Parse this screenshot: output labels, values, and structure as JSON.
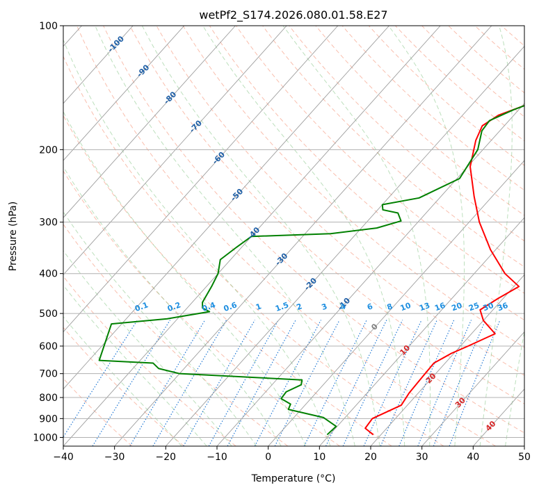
{
  "chart_data": {
    "type": "line",
    "title": "wetPf2_S174.2026.080.01.58.E27",
    "xlabel": "Temperature (°C)",
    "ylabel": "Pressure (hPa)",
    "xlim": [
      -40,
      50
    ],
    "ylim": [
      1050,
      100
    ],
    "y_scale": "log",
    "x_ticks": [
      -40,
      -30,
      -20,
      -10,
      0,
      10,
      20,
      30,
      40,
      50
    ],
    "y_ticks": [
      100,
      200,
      300,
      400,
      500,
      600,
      700,
      800,
      900,
      1000
    ],
    "grid": true,
    "isotherm_labels": [
      -100,
      -90,
      -80,
      -70,
      -60,
      -50,
      -40,
      -30,
      -20,
      -10,
      0,
      10,
      20,
      30,
      40
    ],
    "mixing_ratio_labels": [
      "0.1",
      "0.2",
      "0.4",
      "0.6",
      "1",
      "1.5",
      "2",
      "3",
      "4",
      "6",
      "8",
      "10",
      "13",
      "16",
      "20",
      "25",
      "30",
      "36"
    ],
    "series": [
      {
        "color": "#ff0000",
        "values": [
          {
            "x": 18.5,
            "y": 985
          },
          {
            "x": 15.8,
            "y": 950
          },
          {
            "x": 15.5,
            "y": 900
          },
          {
            "x": 18.8,
            "y": 835
          },
          {
            "x": 18.2,
            "y": 780
          },
          {
            "x": 18.0,
            "y": 720
          },
          {
            "x": 17.8,
            "y": 660
          },
          {
            "x": 19.5,
            "y": 625
          },
          {
            "x": 21.5,
            "y": 600
          },
          {
            "x": 24.6,
            "y": 560
          },
          {
            "x": 20.0,
            "y": 520
          },
          {
            "x": 17.5,
            "y": 490
          },
          {
            "x": 19.0,
            "y": 460
          },
          {
            "x": 21.0,
            "y": 430
          },
          {
            "x": 16.0,
            "y": 400
          },
          {
            "x": 9.0,
            "y": 350
          },
          {
            "x": 2.0,
            "y": 300
          },
          {
            "x": -3.5,
            "y": 260
          },
          {
            "x": -9.5,
            "y": 220
          },
          {
            "x": -13.0,
            "y": 190
          },
          {
            "x": -14.3,
            "y": 175
          },
          {
            "x": -13.0,
            "y": 165
          },
          {
            "x": -7.0,
            "y": 150
          },
          {
            "x": -2.0,
            "y": 135
          },
          {
            "x": 1.0,
            "y": 125
          },
          {
            "x": 2.5,
            "y": 115
          },
          {
            "x": 4.5,
            "y": 107
          },
          {
            "x": 6.0,
            "y": 100
          }
        ]
      },
      {
        "color": "#008000",
        "values": [
          {
            "x": 9.5,
            "y": 985
          },
          {
            "x": 9.8,
            "y": 940
          },
          {
            "x": 5.8,
            "y": 895
          },
          {
            "x": -2.5,
            "y": 855
          },
          {
            "x": -3.0,
            "y": 830
          },
          {
            "x": -5.8,
            "y": 805
          },
          {
            "x": -6.0,
            "y": 775
          },
          {
            "x": -4.3,
            "y": 745
          },
          {
            "x": -5.0,
            "y": 725
          },
          {
            "x": -30.0,
            "y": 700
          },
          {
            "x": -35.0,
            "y": 680
          },
          {
            "x": -37.0,
            "y": 660
          },
          {
            "x": -48.0,
            "y": 650
          },
          {
            "x": -52.0,
            "y": 530
          },
          {
            "x": -42.0,
            "y": 515
          },
          {
            "x": -35.0,
            "y": 495
          },
          {
            "x": -37.0,
            "y": 485
          },
          {
            "x": -38.0,
            "y": 470
          },
          {
            "x": -39.0,
            "y": 430
          },
          {
            "x": -40.0,
            "y": 400
          },
          {
            "x": -42.0,
            "y": 370
          },
          {
            "x": -41.0,
            "y": 345
          },
          {
            "x": -40.0,
            "y": 325
          },
          {
            "x": -25.0,
            "y": 320
          },
          {
            "x": -17.0,
            "y": 310
          },
          {
            "x": -13.5,
            "y": 298
          },
          {
            "x": -15.5,
            "y": 285
          },
          {
            "x": -19.0,
            "y": 280
          },
          {
            "x": -20.0,
            "y": 272
          },
          {
            "x": -14.0,
            "y": 262
          },
          {
            "x": -9.5,
            "y": 235
          },
          {
            "x": -11.0,
            "y": 200
          },
          {
            "x": -13.5,
            "y": 180
          },
          {
            "x": -13.8,
            "y": 170
          },
          {
            "x": -11.0,
            "y": 160
          },
          {
            "x": -7.0,
            "y": 150
          },
          {
            "x": -8.0,
            "y": 140
          },
          {
            "x": -10.5,
            "y": 127
          },
          {
            "x": -10.5,
            "y": 118
          },
          {
            "x": -7.0,
            "y": 110
          },
          {
            "x": -5.0,
            "y": 105
          },
          {
            "x": -4.0,
            "y": 100
          }
        ]
      }
    ]
  }
}
